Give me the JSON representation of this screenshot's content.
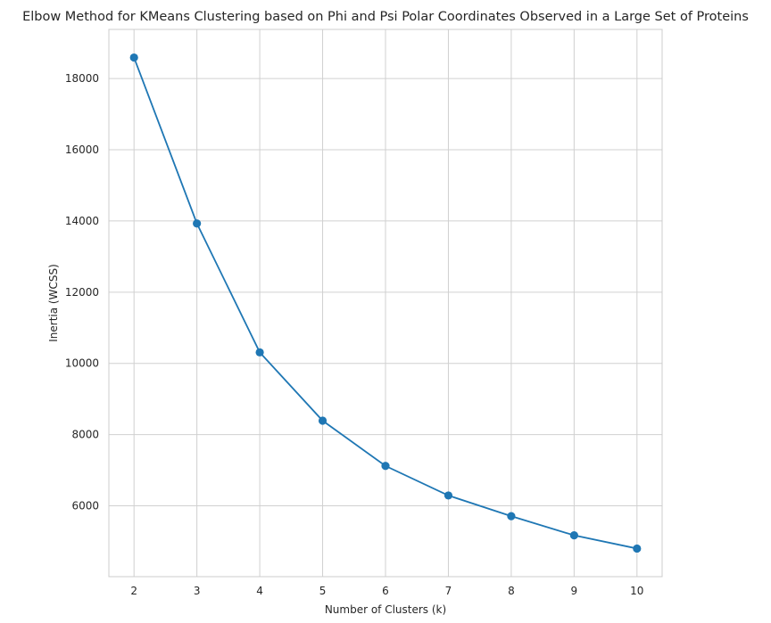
{
  "chart_data": {
    "type": "line",
    "title": "Elbow Method for KMeans Clustering based on Phi and Psi Polar Coordinates Observed in a Large Set of Proteins",
    "xlabel": "Number of Clusters (k)",
    "ylabel": "Inertia (WCSS)",
    "x": [
      2,
      3,
      4,
      5,
      6,
      7,
      8,
      9,
      10
    ],
    "series": [
      {
        "values": [
          18590,
          13930,
          10310,
          8390,
          7120,
          6290,
          5710,
          5170,
          4800
        ]
      }
    ],
    "xlim": [
      1.6,
      10.4
    ],
    "ylim": [
      4010,
      19380
    ],
    "xticks": [
      "2",
      "3",
      "4",
      "5",
      "6",
      "7",
      "8",
      "9",
      "10"
    ],
    "yticks": [
      "6000",
      "8000",
      "10000",
      "12000",
      "14000",
      "16000",
      "18000"
    ],
    "grid": true,
    "legend": "none",
    "marker": "circle",
    "colors": {
      "series": "#1f77b4",
      "grid": "#d0d0d0",
      "frame": "#cccccc",
      "text": "#262626"
    }
  }
}
